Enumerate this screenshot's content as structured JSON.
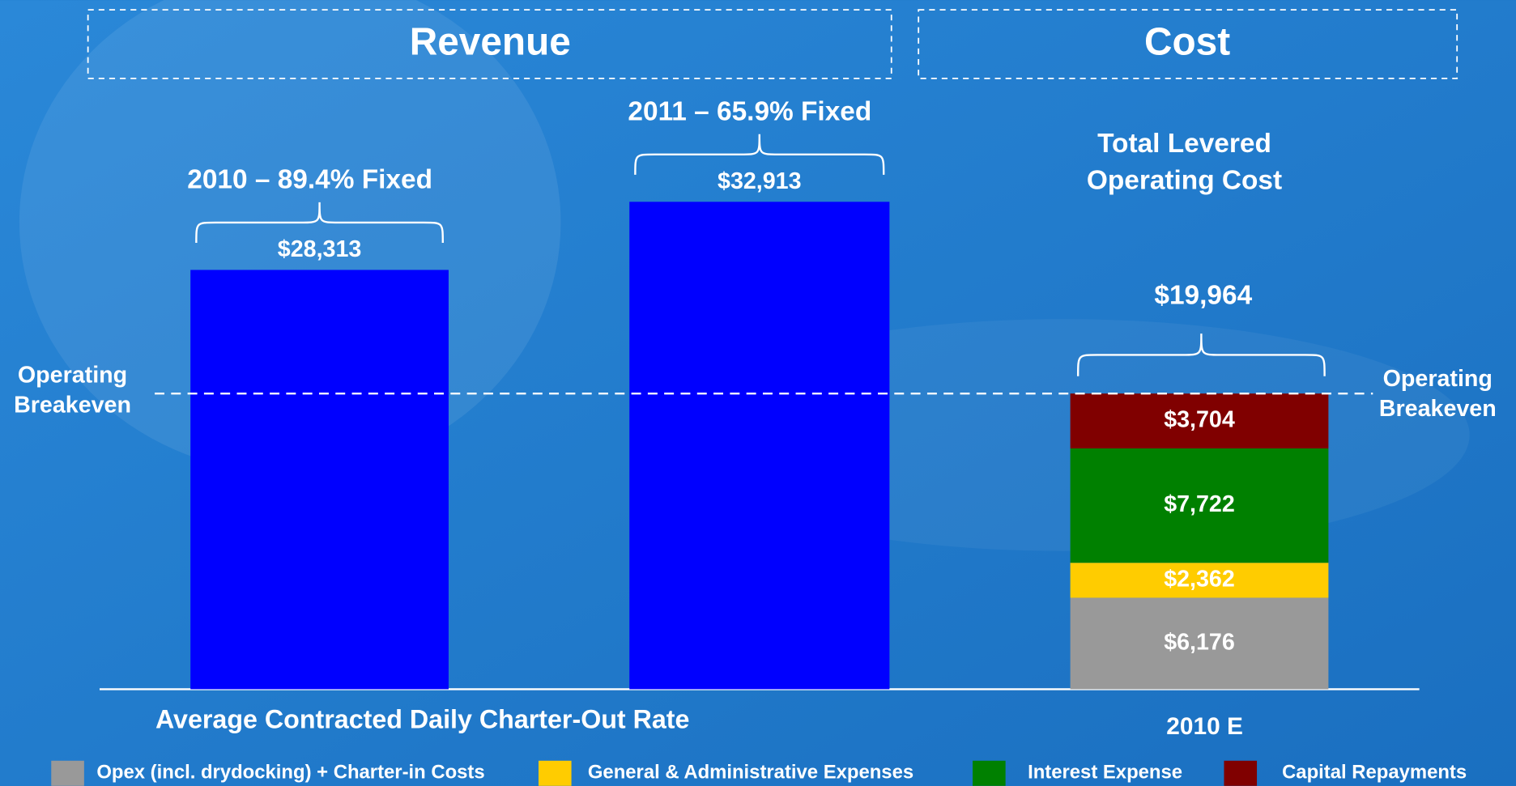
{
  "chart_data": {
    "type": "bar",
    "sections": [
      "Revenue",
      "Cost"
    ],
    "ylim": [
      0,
      34000
    ],
    "revenue": {
      "categories": [
        "2010 – 89.4% Fixed",
        "2011 – 65.9% Fixed"
      ],
      "values": [
        28313,
        32913
      ],
      "value_labels": [
        "$28,313",
        "$32,913"
      ],
      "color": "#0000ff",
      "axis_label": "Average Contracted Daily Charter-Out Rate"
    },
    "cost": {
      "title_lines": [
        "Total Levered",
        "Operating Cost"
      ],
      "category": "2010 E",
      "total": 19964,
      "total_label": "$19,964",
      "series": [
        {
          "name": "Opex (incl. drydocking) + Charter-in Costs",
          "color": "#999999",
          "values": [
            6176
          ],
          "value_labels": [
            "$6,176"
          ]
        },
        {
          "name": "General & Administrative Expenses",
          "color": "#ffcc00",
          "values": [
            2362
          ],
          "value_labels": [
            "$2,362"
          ]
        },
        {
          "name": "Interest Expense",
          "color": "#008000",
          "values": [
            7722
          ],
          "value_labels": [
            "$7,722"
          ]
        },
        {
          "name": "Capital Repayments",
          "color": "#800000",
          "values": [
            3704
          ],
          "value_labels": [
            "$3,704"
          ]
        }
      ]
    },
    "breakeven_lines": [
      "Operating",
      "Breakeven"
    ]
  }
}
